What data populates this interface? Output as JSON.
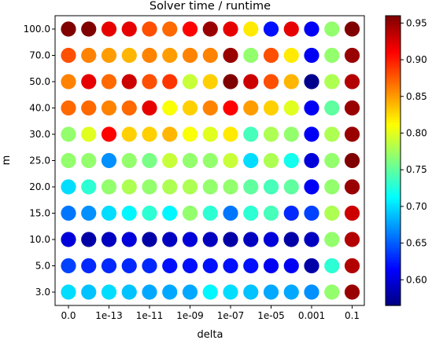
{
  "chart_data": {
    "type": "scatter",
    "title": "Solver time / runtime",
    "xlabel": "delta",
    "ylabel": "m",
    "x_categories": [
      "0.0",
      "1e-14",
      "1e-13",
      "1e-12",
      "1e-11",
      "1e-10",
      "1e-09",
      "1e-08",
      "1e-07",
      "1e-06",
      "1e-05",
      "1e-04",
      "0.001",
      "0.01",
      "0.1"
    ],
    "x_tick_labels_shown": [
      "0.0",
      "1e-13",
      "1e-11",
      "1e-09",
      "1e-07",
      "1e-05",
      "0.001",
      "0.1"
    ],
    "y_categories": [
      "3.0",
      "5.0",
      "10.0",
      "15.0",
      "20.0",
      "25.0",
      "30.0",
      "40.0",
      "50.0",
      "70.0",
      "100.0"
    ],
    "colorbar": {
      "min": 0.565,
      "max": 0.96,
      "ticks": [
        "0.60",
        "0.65",
        "0.70",
        "0.75",
        "0.80",
        "0.85",
        "0.90",
        "0.95"
      ],
      "colormap": "jet"
    },
    "values": [
      [
        0.7,
        0.69,
        0.7,
        0.69,
        0.68,
        0.68,
        0.68,
        0.71,
        0.7,
        0.69,
        0.68,
        0.68,
        0.67,
        0.77,
        0.95
      ],
      [
        0.64,
        0.63,
        0.63,
        0.63,
        0.63,
        0.62,
        0.62,
        0.62,
        0.62,
        0.62,
        0.61,
        0.61,
        0.58,
        0.73,
        0.94
      ],
      [
        0.6,
        0.58,
        0.59,
        0.6,
        0.58,
        0.59,
        0.6,
        0.59,
        0.58,
        0.59,
        0.6,
        0.58,
        0.59,
        0.77,
        0.94
      ],
      [
        0.66,
        0.67,
        0.7,
        0.71,
        0.73,
        0.71,
        0.77,
        0.73,
        0.66,
        0.73,
        0.74,
        0.63,
        0.64,
        0.78,
        0.93
      ],
      [
        0.7,
        0.73,
        0.77,
        0.78,
        0.77,
        0.78,
        0.78,
        0.77,
        0.77,
        0.75,
        0.74,
        0.75,
        0.61,
        0.77,
        0.95
      ],
      [
        0.77,
        0.77,
        0.67,
        0.77,
        0.76,
        0.79,
        0.77,
        0.77,
        0.79,
        0.7,
        0.78,
        0.72,
        0.6,
        0.77,
        0.96
      ],
      [
        0.77,
        0.8,
        0.91,
        0.83,
        0.83,
        0.84,
        0.81,
        0.8,
        0.82,
        0.74,
        0.78,
        0.77,
        0.61,
        0.78,
        0.95
      ],
      [
        0.87,
        0.87,
        0.86,
        0.87,
        0.92,
        0.81,
        0.83,
        0.86,
        0.91,
        0.85,
        0.83,
        0.8,
        0.61,
        0.75,
        0.95
      ],
      [
        0.86,
        0.92,
        0.87,
        0.93,
        0.88,
        0.89,
        0.79,
        0.83,
        0.96,
        0.93,
        0.88,
        0.84,
        0.57,
        0.78,
        0.94
      ],
      [
        0.88,
        0.86,
        0.85,
        0.84,
        0.86,
        0.85,
        0.86,
        0.86,
        0.95,
        0.77,
        0.88,
        0.82,
        0.61,
        0.77,
        0.95
      ],
      [
        0.96,
        0.96,
        0.92,
        0.92,
        0.88,
        0.87,
        0.91,
        0.95,
        0.92,
        0.82,
        0.62,
        0.92,
        0.61,
        0.77,
        0.96
      ]
    ]
  }
}
